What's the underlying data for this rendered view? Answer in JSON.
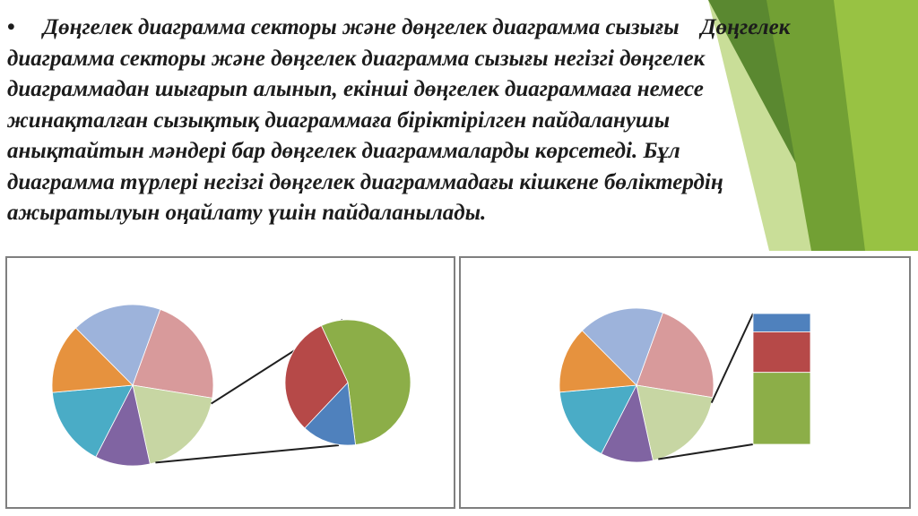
{
  "slide": {
    "bullet": "•",
    "heading": "Дөңгелек диаграмма секторы және дөңгелек диаграмма сызығы",
    "body_lines": [
      "Дөңгелек",
      "диаграмма секторы және дөңгелек диаграмма сызығы негізгі дөңгелек",
      "диаграммадан шығарып алынып, екінші дөңгелек диаграммаға немесе",
      "жинақталған сызықтық диаграммаға біріктірілген пайдаланушы",
      "анықтайтын мәндері бар дөңгелек диаграммаларды көрсетеді. Бұл",
      "диаграмма түрлері негізгі дөңгелек диаграммадағы кішкене бөліктердің",
      "ажыратылуын оңайлату үшін пайдаланылады."
    ]
  },
  "theme_colors": {
    "green_dark": "#4f7a28",
    "green_mid": "#6e9a33",
    "green_light": "#93bd3f",
    "green_pale": "#b8d37a"
  },
  "chart_data": [
    {
      "type": "pie",
      "variant": "pie-of-pie",
      "main_slices": [
        {
          "value": 22,
          "color": "#d89a9b"
        },
        {
          "value": 19,
          "color": "#c7d6a3",
          "role": "other"
        },
        {
          "value": 11,
          "color": "#8064a2"
        },
        {
          "value": 16,
          "color": "#4aacc6"
        },
        {
          "value": 14,
          "color": "#e6923e"
        },
        {
          "value": 18,
          "color": "#9db3db"
        }
      ],
      "secondary_slices": [
        {
          "value": 55,
          "color": "#8cae48"
        },
        {
          "value": 14,
          "color": "#4f81bd"
        },
        {
          "value": 31,
          "color": "#b64948"
        }
      ]
    },
    {
      "type": "pie",
      "variant": "bar-of-pie",
      "main_slices": [
        {
          "value": 22,
          "color": "#d89a9b"
        },
        {
          "value": 19,
          "color": "#c7d6a3",
          "role": "other"
        },
        {
          "value": 11,
          "color": "#8064a2"
        },
        {
          "value": 16,
          "color": "#4aacc6"
        },
        {
          "value": 14,
          "color": "#e6923e"
        },
        {
          "value": 18,
          "color": "#9db3db"
        }
      ],
      "stacked_bar": [
        {
          "value": 14,
          "color": "#4f81bd"
        },
        {
          "value": 31,
          "color": "#b64948"
        },
        {
          "value": 55,
          "color": "#8cae48"
        }
      ]
    }
  ]
}
